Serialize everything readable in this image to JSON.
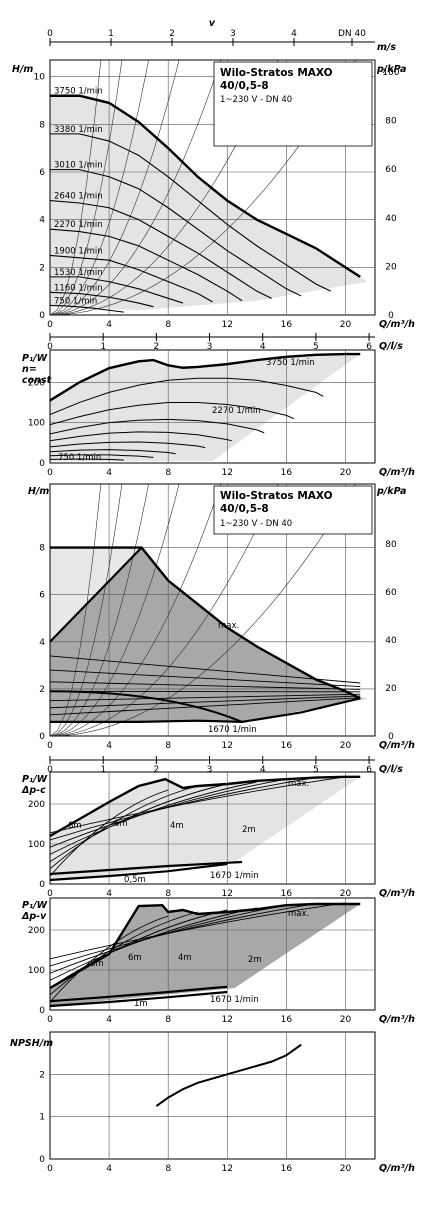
{
  "chart_data": [
    {
      "id": "p1",
      "type": "line",
      "title": "Wilo-Stratos MAXO 40/0,5-8",
      "subtitle": "1~230 V - DN 40",
      "xlabel": "Q/m³/h",
      "ylabel": "H/m",
      "y2label": "p/kPa",
      "xlim": [
        0,
        22
      ],
      "ylim": [
        0,
        10.7
      ],
      "xticks": [
        "0",
        "4",
        "8",
        "12",
        "16",
        "20"
      ],
      "yticks": [
        "0",
        "2",
        "4",
        "6",
        "8",
        "10"
      ],
      "y2ticks": [
        "0",
        "20",
        "40",
        "60",
        "80",
        "100"
      ],
      "top_axis_label": "v",
      "top_axis_unit": "m/s",
      "top_axis_dn": "DN 40",
      "top_axis_ticks": [
        "0",
        "1",
        "2",
        "3",
        "4"
      ],
      "series": [
        {
          "name": "3750 1/min",
          "x": [
            0,
            2,
            4,
            6,
            8,
            10,
            12,
            14,
            16,
            18,
            20,
            21
          ],
          "y": [
            9.2,
            9.2,
            8.9,
            8.1,
            7.0,
            5.8,
            4.8,
            4.0,
            3.4,
            2.8,
            2.0,
            1.6
          ]
        },
        {
          "name": "3380 1/min",
          "x": [
            0,
            2,
            4,
            6,
            8,
            10,
            12,
            14,
            16,
            18,
            19
          ],
          "y": [
            7.6,
            7.6,
            7.3,
            6.7,
            5.8,
            4.8,
            3.8,
            2.9,
            2.1,
            1.3,
            1.0
          ]
        },
        {
          "name": "3010 1/min",
          "x": [
            0,
            2,
            4,
            6,
            8,
            10,
            12,
            14,
            16,
            17
          ],
          "y": [
            6.1,
            6.1,
            5.8,
            5.3,
            4.5,
            3.6,
            2.7,
            1.9,
            1.1,
            0.8
          ]
        },
        {
          "name": "2640 1/min",
          "x": [
            0,
            2,
            4,
            6,
            8,
            10,
            12,
            14,
            15
          ],
          "y": [
            4.8,
            4.7,
            4.5,
            4.0,
            3.3,
            2.6,
            1.8,
            1.0,
            0.7
          ]
        },
        {
          "name": "2270 1/min",
          "x": [
            0,
            2,
            4,
            6,
            8,
            10,
            12,
            13
          ],
          "y": [
            3.6,
            3.5,
            3.3,
            2.9,
            2.3,
            1.7,
            1.0,
            0.6
          ]
        },
        {
          "name": "1900 1/min",
          "x": [
            0,
            2,
            4,
            6,
            8,
            10,
            11
          ],
          "y": [
            2.5,
            2.4,
            2.3,
            1.9,
            1.4,
            0.9,
            0.55
          ]
        },
        {
          "name": "1530 1/min",
          "x": [
            0,
            2,
            4,
            6,
            8,
            9
          ],
          "y": [
            1.6,
            1.6,
            1.4,
            1.1,
            0.7,
            0.5
          ]
        },
        {
          "name": "1160 1/min",
          "x": [
            0,
            2,
            4,
            6,
            7
          ],
          "y": [
            0.95,
            0.9,
            0.75,
            0.5,
            0.35
          ]
        },
        {
          "name": "750 1/min",
          "x": [
            0,
            1,
            2,
            3,
            4,
            5
          ],
          "y": [
            0.4,
            0.38,
            0.34,
            0.28,
            0.2,
            0.12
          ]
        }
      ]
    },
    {
      "id": "p2",
      "type": "line",
      "xlabel": "Q/m³/h",
      "ylabel": "P₁/W",
      "ylabel2": "n=",
      "ylabel3": "const",
      "y2label": "Q/l/s",
      "xlim": [
        0,
        22
      ],
      "ylim": [
        0,
        280
      ],
      "xticks": [
        "0",
        "4",
        "8",
        "12",
        "16",
        "20"
      ],
      "yticks": [
        "0",
        "100",
        "200"
      ],
      "top_axis_ticks": [
        "0",
        "1",
        "2",
        "3",
        "4",
        "5",
        "6"
      ],
      "series": [
        {
          "name": "3750 1/min",
          "x": [
            0,
            2,
            4,
            6,
            7,
            8,
            9,
            10,
            12,
            14,
            16,
            18,
            20,
            21
          ],
          "y": [
            155,
            200,
            235,
            252,
            255,
            242,
            236,
            238,
            245,
            255,
            263,
            268,
            270,
            270
          ]
        },
        {
          "name": "",
          "x": [
            0,
            2,
            4,
            6,
            8,
            10,
            12,
            14,
            16,
            18,
            18.5
          ],
          "y": [
            120,
            150,
            175,
            193,
            205,
            210,
            210,
            205,
            192,
            175,
            165
          ]
        },
        {
          "name": "2270 1/min",
          "x": [
            0,
            2,
            4,
            6,
            8,
            10,
            12,
            14,
            16,
            16.5
          ],
          "y": [
            95,
            115,
            132,
            143,
            150,
            150,
            145,
            135,
            118,
            110
          ]
        },
        {
          "name": "",
          "x": [
            0,
            2,
            4,
            6,
            8,
            10,
            12,
            14,
            14.5
          ],
          "y": [
            72,
            88,
            100,
            106,
            108,
            105,
            97,
            82,
            75
          ]
        },
        {
          "name": "",
          "x": [
            0,
            2,
            4,
            6,
            8,
            10,
            12,
            12.3
          ],
          "y": [
            55,
            66,
            74,
            77,
            76,
            70,
            58,
            55
          ]
        },
        {
          "name": "",
          "x": [
            0,
            2,
            4,
            6,
            8,
            10,
            10.5
          ],
          "y": [
            40,
            47,
            51,
            52,
            49,
            42,
            38
          ]
        },
        {
          "name": "",
          "x": [
            0,
            2,
            4,
            6,
            8,
            8.5
          ],
          "y": [
            28,
            32,
            33,
            31,
            26,
            23
          ]
        },
        {
          "name": "",
          "x": [
            0,
            2,
            4,
            6,
            7
          ],
          "y": [
            18,
            20,
            20,
            17,
            14
          ]
        },
        {
          "name": "750 1/min",
          "x": [
            0,
            2,
            4,
            5
          ],
          "y": [
            9,
            10,
            9,
            7
          ]
        }
      ]
    },
    {
      "id": "p3",
      "type": "line",
      "title": "Wilo-Stratos MAXO 40/0,5-8",
      "subtitle": "1~230 V - DN 40",
      "xlabel": "Q/m³/h",
      "ylabel": "H/m",
      "y2label": "p/kPa",
      "xlim": [
        0,
        22
      ],
      "ylim": [
        0,
        10.7
      ],
      "xticks": [
        "0",
        "4",
        "8",
        "12",
        "16",
        "20"
      ],
      "yticks": [
        "0",
        "2",
        "4",
        "6",
        "8"
      ],
      "y2ticks": [
        "0",
        "20",
        "40",
        "60",
        "80"
      ],
      "annotations": [
        "max.",
        "1670 1/min"
      ],
      "series": [
        {
          "name": "max.",
          "x": [
            0,
            6.2,
            8,
            10,
            12,
            14,
            16,
            18,
            20,
            21
          ],
          "y": [
            8,
            8,
            6.6,
            5.6,
            4.6,
            3.8,
            3.1,
            2.4,
            1.9,
            1.6
          ]
        },
        {
          "name": "1670 1/min",
          "x": [
            0,
            6,
            10,
            13,
            17,
            21
          ],
          "y": [
            0.6,
            0.6,
            0.65,
            0.6,
            1.0,
            1.6
          ]
        }
      ]
    },
    {
      "id": "p4",
      "type": "line",
      "xlabel": "Q/m³/h",
      "ylabel": "P₁/W",
      "ylabel2": "Δp-c",
      "y2label": "Q/l/s",
      "xlim": [
        0,
        22
      ],
      "ylim": [
        0,
        280
      ],
      "xticks": [
        "0",
        "4",
        "8",
        "12",
        "16",
        "20"
      ],
      "yticks": [
        "0",
        "100",
        "200"
      ],
      "top_axis_ticks": [
        "0",
        "1",
        "2",
        "3",
        "4",
        "5",
        "6"
      ],
      "annotations": [
        "max.",
        "8m",
        "6m",
        "4m",
        "2m",
        "0,5m",
        "1670 1/min"
      ],
      "series": [
        {
          "name": "max.",
          "x": [
            0,
            4,
            6,
            7.8,
            9,
            10,
            12,
            14,
            16,
            18,
            20,
            21
          ],
          "y": [
            120,
            205,
            245,
            262,
            240,
            245,
            250,
            258,
            262,
            266,
            268,
            268
          ]
        },
        {
          "name": "0,5m",
          "x": [
            0,
            4,
            8,
            12
          ],
          "y": [
            10,
            20,
            32,
            50
          ]
        },
        {
          "name": "1670 1/min",
          "x": [
            0,
            4,
            8,
            12,
            13
          ],
          "y": [
            25,
            35,
            45,
            53,
            55
          ]
        }
      ]
    },
    {
      "id": "p5",
      "type": "line",
      "xlabel": "Q/m³/h",
      "ylabel": "P₁/W",
      "ylabel2": "Δp-v",
      "xlim": [
        0,
        22
      ],
      "ylim": [
        0,
        280
      ],
      "xticks": [
        "0",
        "4",
        "8",
        "12",
        "16",
        "20"
      ],
      "yticks": [
        "0",
        "100",
        "200"
      ],
      "annotations": [
        "max.",
        "8m",
        "6m",
        "4m",
        "2m",
        "1m",
        "1670 1/min"
      ],
      "series": [
        {
          "name": "max.",
          "x": [
            0,
            4,
            6,
            7.6,
            8,
            9,
            10,
            12,
            14,
            16,
            18,
            20,
            21
          ],
          "y": [
            55,
            140,
            260,
            262,
            245,
            250,
            240,
            245,
            252,
            262,
            265,
            265,
            265
          ]
        },
        {
          "name": "1m",
          "x": [
            0,
            4,
            8,
            12
          ],
          "y": [
            10,
            20,
            32,
            45
          ]
        },
        {
          "name": "1670 1/min",
          "x": [
            0,
            4,
            8,
            11,
            12
          ],
          "y": [
            22,
            33,
            45,
            55,
            58
          ]
        }
      ]
    },
    {
      "id": "p6",
      "type": "line",
      "xlabel": "Q/m³/h",
      "ylabel": "NPSH/m",
      "xlim": [
        0,
        22
      ],
      "ylim": [
        0,
        3.0
      ],
      "xticks": [
        "0",
        "4",
        "8",
        "12",
        "16",
        "20"
      ],
      "yticks": [
        "0",
        "1",
        "2"
      ],
      "series": [
        {
          "name": "",
          "x": [
            7.2,
            8,
            9,
            10,
            11,
            12,
            13,
            14,
            15,
            16,
            17
          ],
          "y": [
            1.25,
            1.45,
            1.65,
            1.8,
            1.9,
            2.0,
            2.1,
            2.2,
            2.3,
            2.45,
            2.7
          ]
        }
      ]
    }
  ]
}
